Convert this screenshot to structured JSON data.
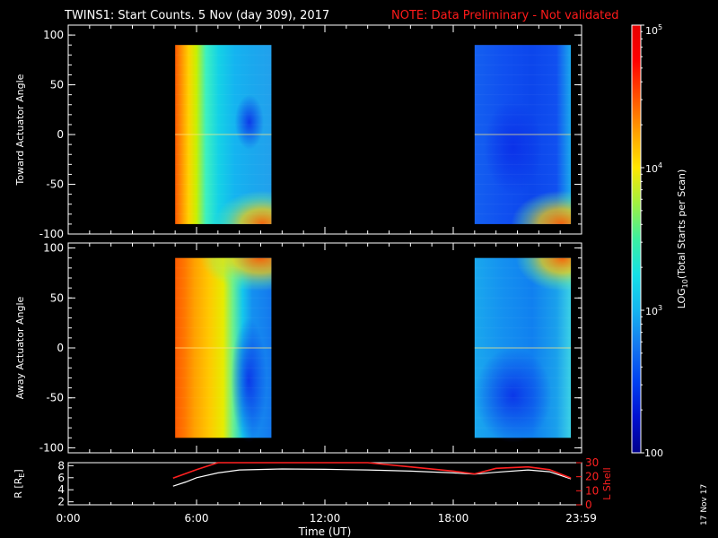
{
  "header": {
    "title": "TWINS1: Start Counts.  5 Nov (day 309), 2017",
    "note": "NOTE: Data Preliminary - Not validated"
  },
  "stamp": "17 Nov 17",
  "colors": {
    "note": "#ff1a1a",
    "background": "#000000",
    "axes": "#ffffff",
    "lshell": "#ff2020",
    "rline": "#ffffff"
  },
  "chart_data": [
    {
      "type": "heatmap",
      "panel": "top",
      "ylabel": "Toward Actuator Angle",
      "ylim": [
        -100,
        110
      ],
      "yticks": [
        "100",
        "50",
        "0",
        "-50",
        "-100"
      ],
      "xlim": [
        0,
        24
      ],
      "data_intervals_hours": [
        [
          5.0,
          9.5
        ],
        [
          19.0,
          23.5
        ]
      ],
      "value_scale": "log",
      "segments": [
        {
          "interval": 0,
          "color_stops": [
            [
              "#ff5a00",
              0
            ],
            [
              "#ff8c00",
              0.06
            ],
            [
              "#ffd200",
              0.14
            ],
            [
              "#c8f000",
              0.22
            ],
            [
              "#3cf0c0",
              0.32
            ],
            [
              "#14d2e6",
              0.45
            ],
            [
              "#14b4f0",
              0.62
            ],
            [
              "#1aa8ee",
              0.8
            ],
            [
              "#22a0ec",
              1
            ]
          ],
          "dark_blob": {
            "x0": 0.62,
            "x1": 0.92,
            "y0": 40,
            "y1": -15
          },
          "bottom_hot": {
            "x0": 0.75,
            "y": -75
          }
        },
        {
          "interval": 1,
          "color_stops": [
            [
              "#1460f0",
              0
            ],
            [
              "#1050f0",
              0.3
            ],
            [
              "#0c46ec",
              0.6
            ],
            [
              "#1050f0",
              0.85
            ],
            [
              "#1aa8ee",
              1
            ]
          ],
          "dark_blob": {
            "x0": 0.1,
            "x1": 0.7,
            "y0": 35,
            "y1": -60
          },
          "bottom_hot": {
            "x0": 0.72,
            "y": -75
          }
        }
      ]
    },
    {
      "type": "heatmap",
      "panel": "middle",
      "ylabel": "Away Actuator Angle",
      "ylim": [
        -105,
        105
      ],
      "yticks": [
        "100",
        "50",
        "0",
        "-50",
        "-100"
      ],
      "xlim": [
        0,
        24
      ],
      "data_intervals_hours": [
        [
          5.0,
          9.5
        ],
        [
          19.0,
          23.5
        ]
      ],
      "value_scale": "log",
      "segments": [
        {
          "interval": 0,
          "color_stops": [
            [
              "#ff5a00",
              0
            ],
            [
              "#ff7800",
              0.1
            ],
            [
              "#ffa000",
              0.2
            ],
            [
              "#ffc800",
              0.35
            ],
            [
              "#e6ec00",
              0.5
            ],
            [
              "#6cf08c",
              0.6
            ],
            [
              "#14c8ec",
              0.7
            ],
            [
              "#1490f0",
              0.8
            ],
            [
              "#1478ee",
              1
            ]
          ],
          "dark_blob": {
            "x0": 0.58,
            "x1": 0.95,
            "y0": 30,
            "y1": -95
          },
          "top_hot": {
            "x0": 0.5,
            "y": 80
          }
        },
        {
          "interval": 1,
          "color_stops": [
            [
              "#1aa8ee",
              0
            ],
            [
              "#1490f0",
              0.3
            ],
            [
              "#1080f0",
              0.6
            ],
            [
              "#1aa0ec",
              0.85
            ],
            [
              "#3cd2e6",
              1
            ]
          ],
          "dark_blob": {
            "x0": 0.0,
            "x1": 0.8,
            "y0": 0,
            "y1": -95
          },
          "top_hot": {
            "x0": 0.68,
            "y": 80
          }
        }
      ]
    },
    {
      "type": "line",
      "panel": "bottom",
      "ylabel": "R [R",
      "ylabel_sub": "E",
      "ylim": [
        1.5,
        8.5
      ],
      "yticks": [
        "8",
        "6",
        "4",
        "2"
      ],
      "y2label": "L Shell",
      "y2lim": [
        0,
        30
      ],
      "y2ticks": [
        "30",
        "20",
        "10",
        "0"
      ],
      "xlabel": "Time (UT)",
      "xticks": [
        {
          "x": 0,
          "label": "0:00"
        },
        {
          "x": 6,
          "label": "6:00"
        },
        {
          "x": 12,
          "label": "12:00"
        },
        {
          "x": 18,
          "label": "18:00"
        },
        {
          "x": 23.983,
          "label": "23:59"
        }
      ],
      "series": [
        {
          "axis": "y",
          "color": "white",
          "x": [
            4.9,
            5.5,
            6.0,
            7.0,
            8.0,
            10.0,
            12.0,
            14.0,
            16.0,
            18.0,
            19.0,
            20.0,
            21.5,
            22.5,
            23.5
          ],
          "y": [
            4.6,
            5.3,
            6.0,
            6.8,
            7.3,
            7.45,
            7.4,
            7.3,
            7.1,
            6.8,
            6.6,
            6.9,
            7.3,
            7.0,
            5.8
          ]
        },
        {
          "axis": "y2",
          "color": "red",
          "x": [
            4.9,
            6.0,
            7.0,
            7.2,
            13.7,
            14.0,
            16.0,
            18.0,
            19.0,
            20.0,
            21.5,
            22.5,
            23.5
          ],
          "y": [
            19,
            25,
            30,
            31,
            31,
            30,
            27,
            24,
            22,
            26,
            27,
            25,
            19
          ]
        }
      ]
    }
  ],
  "colorbar": {
    "label": "LOG",
    "label_sub": "10",
    "label_rest": "(Total Starts per Scan)",
    "ticks": [
      {
        "value": 100000,
        "base": "10",
        "exp": "5"
      },
      {
        "value": 10000,
        "base": "10",
        "exp": "4"
      },
      {
        "value": 1000,
        "base": "10",
        "exp": "3"
      },
      {
        "value": 100,
        "label": "100"
      }
    ],
    "range": [
      100,
      100000
    ],
    "colors": [
      "#00008c",
      "#0010d0",
      "#0040f0",
      "#1478f0",
      "#14b4f0",
      "#14e0e6",
      "#3cf0a0",
      "#a0f040",
      "#ffe600",
      "#ffa000",
      "#ff5000",
      "#ff0000",
      "#e60000"
    ]
  }
}
